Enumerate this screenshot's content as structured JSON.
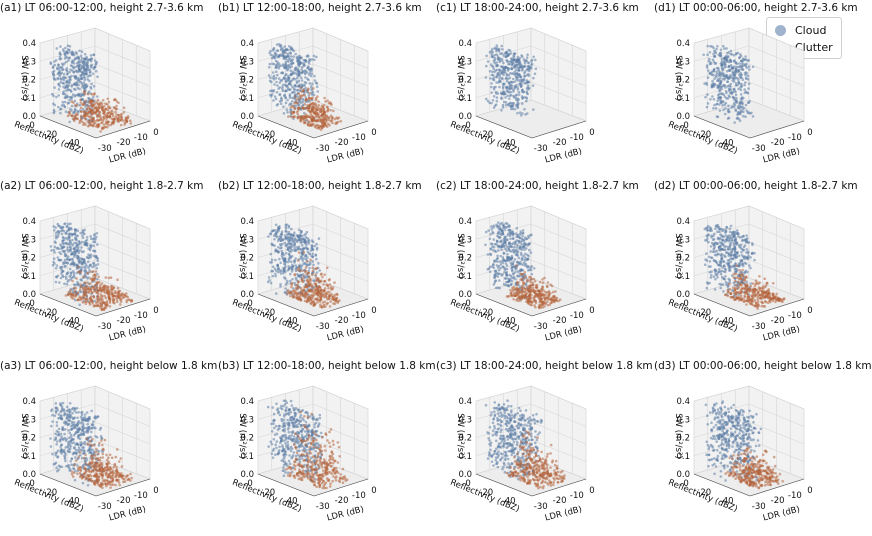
{
  "legend": {
    "cloud_label": "Cloud",
    "clutter_label": "Clutter",
    "placement": "top-right of panel d1"
  },
  "colors": {
    "cloud": "#5d7ea5",
    "clutter": "#b5643d",
    "pane": "#f2f2f2",
    "grid": "#d6d6d6"
  },
  "chart_data": [
    {
      "id": "a1",
      "type": "scatter",
      "title": "(a1) LT 06:00-12:00, height 2.7-3.6 km",
      "xlabel": "LDR (dB)",
      "ylabel": "Reflectivity (dBZ)",
      "zlabel": "SW (m²/s²)",
      "xticks": [
        "-30",
        "-20",
        "-10",
        "0"
      ],
      "yticks": [
        "0",
        "-20",
        "-40"
      ],
      "zticks": [
        "0.0",
        "0.1",
        "0.2",
        "0.3",
        "0.4"
      ],
      "xlim": [
        -35,
        0
      ],
      "ylim": [
        -50,
        0
      ],
      "zlim": [
        0,
        0.4
      ],
      "grid": true,
      "projection": "3d",
      "series": [
        {
          "name": "Cloud",
          "ldr_range": [
            -34,
            -24
          ],
          "reflectivity_range": [
            -48,
            -12
          ],
          "sw_range": [
            0.02,
            0.4
          ]
        },
        {
          "name": "Clutter",
          "ldr_range": [
            -28,
            -8
          ],
          "reflectivity_range": [
            -42,
            -4
          ],
          "sw_range": [
            0.0,
            0.18
          ]
        }
      ]
    },
    {
      "id": "b1",
      "type": "scatter",
      "title": "(b1) LT 12:00-18:00, height 2.7-3.6 km",
      "xlabel": "LDR (dB)",
      "ylabel": "Reflectivity (dBZ)",
      "zlabel": "SW (m²/s²)",
      "xticks": [
        "-30",
        "-20",
        "-10",
        "0"
      ],
      "yticks": [
        "0",
        "-20",
        "-40"
      ],
      "zticks": [
        "0.0",
        "0.1",
        "0.2",
        "0.3",
        "0.4"
      ],
      "xlim": [
        -35,
        0
      ],
      "ylim": [
        -50,
        0
      ],
      "zlim": [
        0,
        0.4
      ],
      "grid": true,
      "projection": "3d",
      "series": [
        {
          "name": "Cloud",
          "ldr_range": [
            -34,
            -24
          ],
          "reflectivity_range": [
            -48,
            -12
          ],
          "sw_range": [
            0.04,
            0.4
          ]
        },
        {
          "name": "Clutter",
          "ldr_range": [
            -26,
            -12
          ],
          "reflectivity_range": [
            -40,
            -8
          ],
          "sw_range": [
            0.0,
            0.2
          ]
        }
      ]
    },
    {
      "id": "c1",
      "type": "scatter",
      "title": "(c1) LT 18:00-24:00, height 2.7-3.6 km",
      "xlabel": "LDR (dB)",
      "ylabel": "Reflectivity (dBZ)",
      "zlabel": "SW (m²/s²)",
      "xticks": [
        "-30",
        "-20",
        "-10",
        "0"
      ],
      "yticks": [
        "0",
        "-20",
        "-40"
      ],
      "zticks": [
        "0.0",
        "0.1",
        "0.2",
        "0.3",
        "0.4"
      ],
      "xlim": [
        -35,
        0
      ],
      "ylim": [
        -50,
        0
      ],
      "zlim": [
        0,
        0.4
      ],
      "grid": true,
      "projection": "3d",
      "series": [
        {
          "name": "Cloud",
          "ldr_range": [
            -34,
            -24
          ],
          "reflectivity_range": [
            -48,
            -12
          ],
          "sw_range": [
            0.04,
            0.4
          ]
        }
      ]
    },
    {
      "id": "d1",
      "type": "scatter",
      "title": "(d1) LT 00:00-06:00, height 2.7-3.6 km",
      "xlabel": "LDR (dB)",
      "ylabel": "Reflectivity (dBZ)",
      "zlabel": "SW (m²/s²)",
      "xticks": [
        "-30",
        "-20",
        "-10",
        "0"
      ],
      "yticks": [
        "0",
        "-20",
        "-40"
      ],
      "zticks": [
        "0.0",
        "0.1",
        "0.2",
        "0.3",
        "0.4"
      ],
      "xlim": [
        -35,
        0
      ],
      "ylim": [
        -50,
        0
      ],
      "zlim": [
        0,
        0.4
      ],
      "grid": true,
      "projection": "3d",
      "series": [
        {
          "name": "Cloud",
          "ldr_range": [
            -34,
            -24
          ],
          "reflectivity_range": [
            -48,
            -12
          ],
          "sw_range": [
            0.02,
            0.4
          ]
        }
      ]
    },
    {
      "id": "a2",
      "type": "scatter",
      "title": "(a2) LT 06:00-12:00, height 1.8-2.7 km",
      "xlabel": "LDR (dB)",
      "ylabel": "Reflectivity (dBZ)",
      "zlabel": "SW (m²/s²)",
      "xticks": [
        "-30",
        "-20",
        "-10",
        "0"
      ],
      "yticks": [
        "0",
        "-20",
        "-40"
      ],
      "zticks": [
        "0.0",
        "0.1",
        "0.2",
        "0.3",
        "0.4"
      ],
      "xlim": [
        -35,
        0
      ],
      "ylim": [
        -50,
        0
      ],
      "zlim": [
        0,
        0.4
      ],
      "grid": true,
      "projection": "3d",
      "series": [
        {
          "name": "Cloud",
          "ldr_range": [
            -34,
            -24
          ],
          "reflectivity_range": [
            -48,
            -10
          ],
          "sw_range": [
            0.02,
            0.4
          ]
        },
        {
          "name": "Clutter",
          "ldr_range": [
            -28,
            -8
          ],
          "reflectivity_range": [
            -42,
            -4
          ],
          "sw_range": [
            0.0,
            0.16
          ]
        }
      ]
    },
    {
      "id": "b2",
      "type": "scatter",
      "title": "(b2) LT 12:00-18:00, height 1.8-2.7 km",
      "xlabel": "LDR (dB)",
      "ylabel": "Reflectivity (dBZ)",
      "zlabel": "SW (m²/s²)",
      "xticks": [
        "-30",
        "-20",
        "-10",
        "0"
      ],
      "yticks": [
        "0",
        "-20",
        "-40"
      ],
      "zticks": [
        "0.0",
        "0.1",
        "0.2",
        "0.3",
        "0.4"
      ],
      "xlim": [
        -35,
        0
      ],
      "ylim": [
        -50,
        0
      ],
      "zlim": [
        0,
        0.4
      ],
      "grid": true,
      "projection": "3d",
      "series": [
        {
          "name": "Cloud",
          "ldr_range": [
            -34,
            -24
          ],
          "reflectivity_range": [
            -48,
            -10
          ],
          "sw_range": [
            0.02,
            0.4
          ]
        },
        {
          "name": "Clutter",
          "ldr_range": [
            -26,
            -12
          ],
          "reflectivity_range": [
            -42,
            -6
          ],
          "sw_range": [
            0.0,
            0.24
          ]
        }
      ]
    },
    {
      "id": "c2",
      "type": "scatter",
      "title": "(c2) LT 18:00-24:00, height 1.8-2.7 km",
      "xlabel": "LDR (dB)",
      "ylabel": "Reflectivity (dBZ)",
      "zlabel": "SW (m²/s²)",
      "xticks": [
        "-30",
        "-20",
        "-10",
        "0"
      ],
      "yticks": [
        "0",
        "-20",
        "-40"
      ],
      "zticks": [
        "0.0",
        "0.1",
        "0.2",
        "0.3",
        "0.4"
      ],
      "xlim": [
        -35,
        0
      ],
      "ylim": [
        -50,
        0
      ],
      "zlim": [
        0,
        0.4
      ],
      "grid": true,
      "projection": "3d",
      "series": [
        {
          "name": "Cloud",
          "ldr_range": [
            -34,
            -24
          ],
          "reflectivity_range": [
            -48,
            -12
          ],
          "sw_range": [
            0.04,
            0.4
          ]
        },
        {
          "name": "Clutter",
          "ldr_range": [
            -27,
            -12
          ],
          "reflectivity_range": [
            -40,
            -6
          ],
          "sw_range": [
            0.0,
            0.16
          ]
        }
      ]
    },
    {
      "id": "d2",
      "type": "scatter",
      "title": "(d2) LT 00:00-06:00, height 1.8-2.7 km",
      "xlabel": "LDR (dB)",
      "ylabel": "Reflectivity (dBZ)",
      "zlabel": "SW (m²/s²)",
      "xticks": [
        "-30",
        "-20",
        "-10",
        "0"
      ],
      "yticks": [
        "0",
        "-20",
        "-40"
      ],
      "zticks": [
        "0.0",
        "0.1",
        "0.2",
        "0.3",
        "0.4"
      ],
      "xlim": [
        -35,
        0
      ],
      "ylim": [
        -50,
        0
      ],
      "zlim": [
        0,
        0.4
      ],
      "grid": true,
      "projection": "3d",
      "series": [
        {
          "name": "Cloud",
          "ldr_range": [
            -34,
            -24
          ],
          "reflectivity_range": [
            -48,
            -12
          ],
          "sw_range": [
            0.04,
            0.4
          ]
        },
        {
          "name": "Clutter",
          "ldr_range": [
            -26,
            -10
          ],
          "reflectivity_range": [
            -40,
            -4
          ],
          "sw_range": [
            0.0,
            0.16
          ]
        }
      ]
    },
    {
      "id": "a3",
      "type": "scatter",
      "title": "(a3) LT 06:00-12:00, height below 1.8 km",
      "xlabel": "LDR (dB)",
      "ylabel": "Reflectivity (dBZ)",
      "zlabel": "SW (m²/s²)",
      "xticks": [
        "-30",
        "-20",
        "-10",
        "0"
      ],
      "yticks": [
        "0",
        "-20",
        "-40"
      ],
      "zticks": [
        "0.0",
        "0.1",
        "0.2",
        "0.3",
        "0.4"
      ],
      "xlim": [
        -35,
        0
      ],
      "ylim": [
        -50,
        0
      ],
      "zlim": [
        0,
        0.4
      ],
      "grid": true,
      "projection": "3d",
      "series": [
        {
          "name": "Cloud",
          "ldr_range": [
            -34,
            -24
          ],
          "reflectivity_range": [
            -48,
            -8
          ],
          "sw_range": [
            0.02,
            0.4
          ]
        },
        {
          "name": "Clutter",
          "ldr_range": [
            -26,
            -8
          ],
          "reflectivity_range": [
            -40,
            -4
          ],
          "sw_range": [
            0.0,
            0.24
          ]
        }
      ]
    },
    {
      "id": "b3",
      "type": "scatter",
      "title": "(b3) LT 12:00-18:00, height below 1.8 km",
      "xlabel": "LDR (dB)",
      "ylabel": "Reflectivity (dBZ)",
      "zlabel": "SW (m²/s²)",
      "xticks": [
        "-30",
        "-20",
        "-10",
        "0"
      ],
      "yticks": [
        "0",
        "-20",
        "-40"
      ],
      "zticks": [
        "0.0",
        "0.1",
        "0.2",
        "0.3",
        "0.4"
      ],
      "xlim": [
        -35,
        0
      ],
      "ylim": [
        -50,
        0
      ],
      "zlim": [
        0,
        0.4
      ],
      "grid": true,
      "projection": "3d",
      "series": [
        {
          "name": "Cloud",
          "ldr_range": [
            -34,
            -22
          ],
          "reflectivity_range": [
            -48,
            -8
          ],
          "sw_range": [
            0.02,
            0.4
          ]
        },
        {
          "name": "Clutter",
          "ldr_range": [
            -26,
            -10
          ],
          "reflectivity_range": [
            -42,
            -4
          ],
          "sw_range": [
            0.0,
            0.38
          ]
        }
      ]
    },
    {
      "id": "c3",
      "type": "scatter",
      "title": "(c3) LT 18:00-24:00, height below 1.8 km",
      "xlabel": "LDR (dB)",
      "ylabel": "Reflectivity (dBZ)",
      "zlabel": "SW (m²/s²)",
      "xticks": [
        "-30",
        "-20",
        "-10",
        "0"
      ],
      "yticks": [
        "0",
        "-20",
        "-40"
      ],
      "zticks": [
        "0.0",
        "0.1",
        "0.2",
        "0.3",
        "0.4"
      ],
      "xlim": [
        -35,
        0
      ],
      "ylim": [
        -50,
        0
      ],
      "zlim": [
        0,
        0.4
      ],
      "grid": true,
      "projection": "3d",
      "series": [
        {
          "name": "Cloud",
          "ldr_range": [
            -34,
            -22
          ],
          "reflectivity_range": [
            -48,
            -8
          ],
          "sw_range": [
            0.02,
            0.4
          ]
        },
        {
          "name": "Clutter",
          "ldr_range": [
            -26,
            -10
          ],
          "reflectivity_range": [
            -40,
            -4
          ],
          "sw_range": [
            0.0,
            0.26
          ]
        }
      ]
    },
    {
      "id": "d3",
      "type": "scatter",
      "title": "(d3) LT 00:00-06:00, height below 1.8 km",
      "xlabel": "LDR (dB)",
      "ylabel": "Reflectivity (dBZ)",
      "zlabel": "SW (m²/s²)",
      "xticks": [
        "-30",
        "-20",
        "-10",
        "0"
      ],
      "yticks": [
        "0",
        "-20",
        "-40"
      ],
      "zticks": [
        "0.0",
        "0.1",
        "0.2",
        "0.3",
        "0.4"
      ],
      "xlim": [
        -35,
        0
      ],
      "ylim": [
        -50,
        0
      ],
      "zlim": [
        0,
        0.4
      ],
      "grid": true,
      "projection": "3d",
      "series": [
        {
          "name": "Cloud",
          "ldr_range": [
            -34,
            -22
          ],
          "reflectivity_range": [
            -48,
            -8
          ],
          "sw_range": [
            0.02,
            0.4
          ]
        },
        {
          "name": "Clutter",
          "ldr_range": [
            -26,
            -10
          ],
          "reflectivity_range": [
            -40,
            -4
          ],
          "sw_range": [
            0.0,
            0.2
          ]
        }
      ]
    }
  ]
}
